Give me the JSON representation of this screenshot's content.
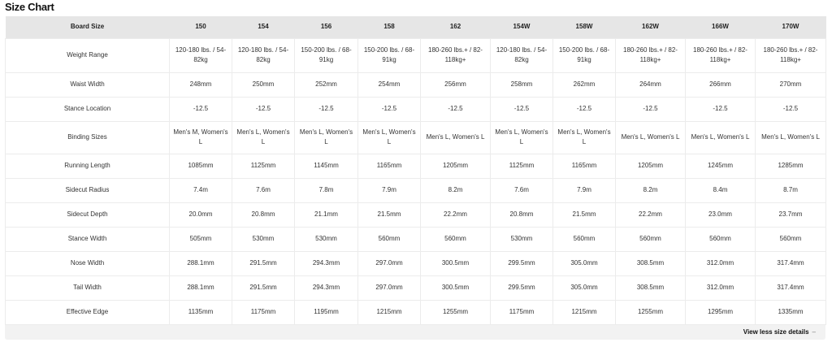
{
  "title": "Size Chart",
  "header": [
    "Board Size",
    "150",
    "154",
    "156",
    "158",
    "162",
    "154W",
    "158W",
    "162W",
    "166W",
    "170W"
  ],
  "rows": [
    {
      "label": "Weight Range",
      "cells": [
        "120-180 lbs. / 54-82kg",
        "120-180 lbs. / 54-82kg",
        "150-200 lbs. / 68-91kg",
        "150-200 lbs. / 68-91kg",
        "180-260 lbs.+ / 82-118kg+",
        "120-180 lbs. / 54-82kg",
        "150-200 lbs. / 68-91kg",
        "180-260 lbs.+ / 82-118kg+",
        "180-260 lbs.+ / 82-118kg+",
        "180-260 lbs.+ / 82-118kg+"
      ]
    },
    {
      "label": "Waist Width",
      "cells": [
        "248mm",
        "250mm",
        "252mm",
        "254mm",
        "256mm",
        "258mm",
        "262mm",
        "264mm",
        "266mm",
        "270mm"
      ]
    },
    {
      "label": "Stance Location",
      "cells": [
        "-12.5",
        "-12.5",
        "-12.5",
        "-12.5",
        "-12.5",
        "-12.5",
        "-12.5",
        "-12.5",
        "-12.5",
        "-12.5"
      ]
    },
    {
      "label": "Binding Sizes",
      "cells": [
        "Men's M, Women's L",
        "Men's L, Women's L",
        "Men's L, Women's L",
        "Men's L, Women's L",
        "Men's L, Women's L",
        "Men's L, Women's L",
        "Men's L, Women's L",
        "Men's L, Women's L",
        "Men's L, Women's L",
        "Men's L, Women's L"
      ]
    },
    {
      "label": "Running Length",
      "cells": [
        "1085mm",
        "1125mm",
        "1145mm",
        "1165mm",
        "1205mm",
        "1125mm",
        "1165mm",
        "1205mm",
        "1245mm",
        "1285mm"
      ]
    },
    {
      "label": "Sidecut Radius",
      "cells": [
        "7.4m",
        "7.6m",
        "7.8m",
        "7.9m",
        "8.2m",
        "7.6m",
        "7.9m",
        "8.2m",
        "8.4m",
        "8.7m"
      ]
    },
    {
      "label": "Sidecut Depth",
      "cells": [
        "20.0mm",
        "20.8mm",
        "21.1mm",
        "21.5mm",
        "22.2mm",
        "20.8mm",
        "21.5mm",
        "22.2mm",
        "23.0mm",
        "23.7mm"
      ]
    },
    {
      "label": "Stance Width",
      "cells": [
        "505mm",
        "530mm",
        "530mm",
        "560mm",
        "560mm",
        "530mm",
        "560mm",
        "560mm",
        "560mm",
        "560mm"
      ]
    },
    {
      "label": "Nose Width",
      "cells": [
        "288.1mm",
        "291.5mm",
        "294.3mm",
        "297.0mm",
        "300.5mm",
        "299.5mm",
        "305.0mm",
        "308.5mm",
        "312.0mm",
        "317.4mm"
      ]
    },
    {
      "label": "Tail Width",
      "cells": [
        "288.1mm",
        "291.5mm",
        "294.3mm",
        "297.0mm",
        "300.5mm",
        "299.5mm",
        "305.0mm",
        "308.5mm",
        "312.0mm",
        "317.4mm"
      ]
    },
    {
      "label": "Effective Edge",
      "cells": [
        "1135mm",
        "1175mm",
        "1195mm",
        "1215mm",
        "1255mm",
        "1175mm",
        "1215mm",
        "1255mm",
        "1295mm",
        "1335mm"
      ]
    }
  ],
  "footer": {
    "toggle_label": "View less size details",
    "toggle_icon": "minus-icon"
  }
}
